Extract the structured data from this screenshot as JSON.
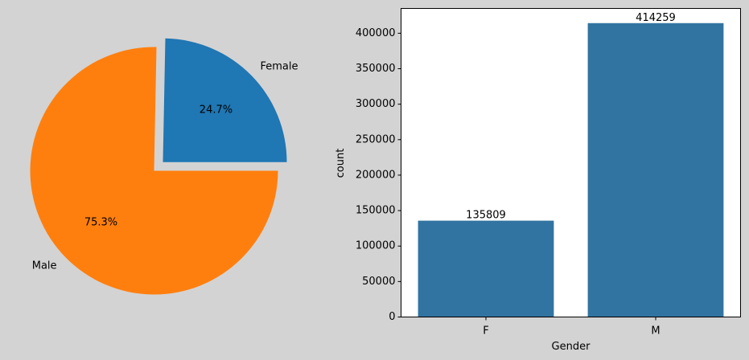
{
  "chart_data": [
    {
      "type": "pie",
      "labels": [
        "Female",
        "Male"
      ],
      "values": [
        135809,
        414259
      ],
      "percent_labels": [
        "24.7%",
        "75.3%"
      ],
      "colors": [
        "#1f77b4",
        "#ff7f0e"
      ],
      "explode": [
        0.1,
        0
      ],
      "start_angle_deg": 0,
      "direction": "counterclockwise"
    },
    {
      "type": "bar",
      "categories": [
        "F",
        "M"
      ],
      "values": [
        135809,
        414259
      ],
      "value_labels": [
        "135809",
        "414259"
      ],
      "xlabel": "Gender",
      "ylabel": "count",
      "ylim": [
        0,
        434967
      ],
      "yticks": [
        0,
        50000,
        100000,
        150000,
        200000,
        250000,
        300000,
        350000,
        400000
      ],
      "ytick_labels": [
        "0",
        "50000",
        "100000",
        "150000",
        "200000",
        "250000",
        "300000",
        "350000",
        "400000"
      ],
      "bar_color": "#3274a1",
      "grid": false
    }
  ],
  "colors": {
    "background": "#d3d3d3",
    "axes_background": "#ffffff"
  }
}
